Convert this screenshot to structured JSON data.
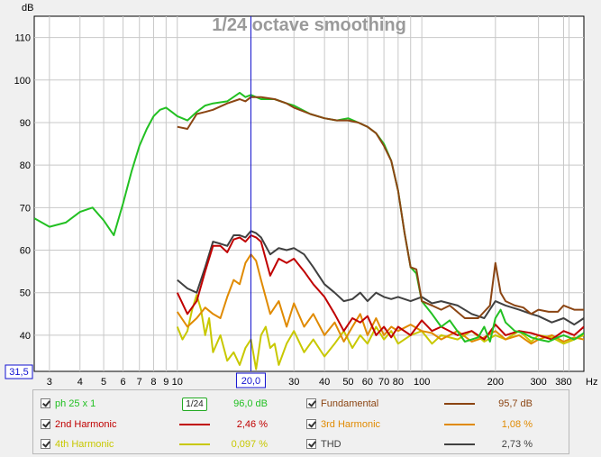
{
  "chart_data": {
    "type": "line",
    "title": "1/24 octave smoothing",
    "ylabel": "dB",
    "xlabel": "Hz",
    "x_scale": "log",
    "xlim": [
      2.6,
      460
    ],
    "ylim": [
      31.5,
      115
    ],
    "y_ticks": [
      40,
      50,
      60,
      70,
      80,
      90,
      100,
      110
    ],
    "x_ticks": [
      3,
      4,
      5,
      6,
      7,
      8,
      9,
      10,
      20,
      30,
      40,
      50,
      60,
      70,
      80,
      100,
      200,
      300,
      380
    ],
    "x_tick_labels": [
      "3",
      "4",
      "5",
      "6",
      "7",
      "8",
      "9",
      "10",
      "20,0",
      "30",
      "40",
      "50",
      "60",
      "70",
      "80",
      "100",
      "200",
      "300",
      "380"
    ],
    "x_minor_grid": [
      90,
      400
    ],
    "y_bottom_label": "31,5",
    "cursor_x": 20,
    "cursor_label": "20,0",
    "grid": true,
    "series": [
      {
        "name": "ph 25 x 1",
        "color": "#22c022",
        "x": [
          2.6,
          3.0,
          3.5,
          4.0,
          4.5,
          5.0,
          5.5,
          6.0,
          6.5,
          7.0,
          7.5,
          8.0,
          8.5,
          9.0,
          9.5,
          10.0,
          11.0,
          12.0,
          13.0,
          14.0,
          16.0,
          18.0,
          19.0,
          20.0,
          22.0,
          25.0,
          28.0,
          30.0,
          35.0,
          40.0,
          45.0,
          50.0,
          55.0,
          60.0,
          65.0,
          70.0,
          75.0,
          80.0,
          85.0,
          90.0,
          95.0,
          100.0,
          110.0,
          120.0,
          130.0,
          150.0,
          170.0,
          180.0,
          190.0,
          200.0,
          210.0,
          220.0,
          240.0,
          260.0,
          280.0,
          300.0,
          330.0,
          360.0,
          380.0,
          420.0,
          460.0
        ],
        "values": [
          67.5,
          65.5,
          66.5,
          69.0,
          70.0,
          67.0,
          63.5,
          71.0,
          78.5,
          84.5,
          88.5,
          91.5,
          93.0,
          93.5,
          92.5,
          91.5,
          90.5,
          92.5,
          94.0,
          94.5,
          95.0,
          97.0,
          96.0,
          96.5,
          95.5,
          95.5,
          94.5,
          94.0,
          92.0,
          91.0,
          90.5,
          91.0,
          90.0,
          89.0,
          87.5,
          85.0,
          81.0,
          74.0,
          64.0,
          56.0,
          54.5,
          48.0,
          45.0,
          42.0,
          43.5,
          38.5,
          39.5,
          42.0,
          38.5,
          44.0,
          46.0,
          43.0,
          41.0,
          40.5,
          39.5,
          39.0,
          38.5,
          39.5,
          40.0,
          39.0,
          40.5
        ]
      },
      {
        "name": "Fundamental",
        "color": "#8b4513",
        "x": [
          10.0,
          11.0,
          12.0,
          13.0,
          14.0,
          16.0,
          18.0,
          19.0,
          20.0,
          22.0,
          25.0,
          28.0,
          30.0,
          35.0,
          40.0,
          45.0,
          50.0,
          55.0,
          60.0,
          65.0,
          70.0,
          75.0,
          80.0,
          85.0,
          90.0,
          95.0,
          100.0,
          110.0,
          120.0,
          130.0,
          150.0,
          170.0,
          190.0,
          200.0,
          210.0,
          220.0,
          240.0,
          260.0,
          280.0,
          300.0,
          330.0,
          360.0,
          380.0,
          420.0,
          460.0
        ],
        "values": [
          89.0,
          88.5,
          92.0,
          92.5,
          93.0,
          94.5,
          95.5,
          95.0,
          96.0,
          96.0,
          95.5,
          94.5,
          93.5,
          92.0,
          91.0,
          90.5,
          90.5,
          90.0,
          89.0,
          87.5,
          84.5,
          81.0,
          74.0,
          64.0,
          56.0,
          55.5,
          48.0,
          47.0,
          46.0,
          47.0,
          44.0,
          44.0,
          47.0,
          57.0,
          50.0,
          48.0,
          47.0,
          46.5,
          45.0,
          46.0,
          45.5,
          45.5,
          47.0,
          46.0,
          46.0
        ]
      },
      {
        "name": "2nd Harmonic",
        "color": "#c00000",
        "x": [
          10.0,
          11.0,
          12.0,
          13.0,
          14.0,
          15.0,
          16.0,
          17.0,
          18.0,
          19.0,
          20.0,
          21.0,
          22.0,
          24.0,
          26.0,
          28.0,
          30.0,
          33.0,
          36.0,
          40.0,
          44.0,
          48.0,
          52.0,
          56.0,
          60.0,
          65.0,
          70.0,
          75.0,
          80.0,
          90.0,
          100.0,
          110.0,
          120.0,
          140.0,
          160.0,
          180.0,
          200.0,
          220.0,
          250.0,
          280.0,
          300.0,
          340.0,
          380.0,
          420.0,
          460.0
        ],
        "values": [
          50.0,
          45.0,
          48.0,
          55.0,
          61.0,
          61.0,
          59.5,
          62.5,
          63.0,
          62.0,
          63.5,
          63.0,
          62.0,
          54.0,
          58.0,
          57.0,
          58.0,
          55.0,
          52.0,
          49.0,
          45.0,
          41.0,
          44.0,
          43.0,
          44.5,
          40.0,
          42.0,
          39.5,
          42.0,
          40.0,
          43.5,
          41.0,
          42.0,
          40.0,
          41.0,
          39.0,
          42.5,
          40.0,
          41.0,
          40.5,
          40.0,
          39.0,
          41.0,
          40.0,
          42.0
        ]
      },
      {
        "name": "3rd Harmonic",
        "color": "#e08a00",
        "x": [
          10.0,
          11.0,
          12.0,
          13.0,
          14.0,
          15.0,
          16.0,
          17.0,
          18.0,
          19.0,
          20.0,
          21.0,
          22.0,
          24.0,
          26.0,
          28.0,
          30.0,
          33.0,
          36.0,
          40.0,
          44.0,
          48.0,
          52.0,
          56.0,
          60.0,
          65.0,
          70.0,
          75.0,
          80.0,
          90.0,
          100.0,
          110.0,
          120.0,
          140.0,
          160.0,
          180.0,
          200.0,
          220.0,
          250.0,
          280.0,
          300.0,
          340.0,
          380.0,
          420.0,
          460.0
        ],
        "values": [
          45.5,
          42.0,
          44.0,
          46.5,
          45.0,
          44.0,
          49.0,
          53.0,
          52.0,
          57.0,
          59.0,
          57.5,
          53.0,
          45.0,
          48.0,
          42.0,
          47.5,
          42.0,
          45.0,
          40.0,
          43.0,
          38.5,
          42.0,
          45.0,
          40.0,
          44.0,
          40.0,
          42.0,
          41.0,
          42.5,
          41.0,
          40.5,
          39.0,
          41.0,
          38.5,
          39.5,
          41.0,
          39.0,
          40.0,
          38.0,
          39.0,
          40.0,
          38.5,
          39.5,
          39.0
        ]
      },
      {
        "name": "4th Harmonic",
        "color": "#c8c800",
        "x": [
          10.0,
          10.5,
          11.0,
          11.5,
          12.0,
          12.5,
          13.0,
          13.5,
          14.0,
          15.0,
          16.0,
          17.0,
          18.0,
          19.0,
          20.0,
          21.0,
          22.0,
          23.0,
          24.0,
          25.0,
          26.0,
          28.0,
          30.0,
          33.0,
          36.0,
          40.0,
          44.0,
          48.0,
          52.0,
          56.0,
          60.0,
          65.0,
          70.0,
          75.0,
          80.0,
          90.0,
          100.0,
          110.0,
          120.0,
          140.0,
          160.0,
          180.0,
          200.0,
          220.0,
          250.0,
          280.0,
          300.0,
          340.0,
          380.0,
          420.0,
          460.0
        ],
        "values": [
          42.0,
          39.0,
          41.0,
          46.0,
          49.5,
          46.0,
          40.0,
          44.0,
          36.0,
          40.0,
          34.0,
          36.0,
          33.0,
          37.0,
          39.0,
          32.0,
          40.0,
          42.0,
          37.0,
          38.0,
          33.0,
          38.0,
          41.0,
          36.0,
          39.0,
          35.0,
          38.0,
          41.0,
          37.0,
          40.0,
          38.0,
          42.0,
          39.0,
          41.0,
          38.0,
          40.0,
          41.0,
          38.0,
          40.0,
          39.0,
          41.0,
          38.5,
          40.0,
          39.0,
          41.0,
          38.5,
          40.0,
          39.5,
          38.0,
          39.0,
          40.0
        ]
      },
      {
        "name": "THD",
        "color": "#404040",
        "x": [
          10.0,
          11.0,
          12.0,
          13.0,
          14.0,
          15.0,
          16.0,
          17.0,
          18.0,
          19.0,
          20.0,
          21.0,
          22.0,
          24.0,
          26.0,
          28.0,
          30.0,
          33.0,
          36.0,
          40.0,
          44.0,
          48.0,
          52.0,
          56.0,
          60.0,
          65.0,
          70.0,
          75.0,
          80.0,
          90.0,
          100.0,
          110.0,
          120.0,
          140.0,
          160.0,
          180.0,
          200.0,
          220.0,
          250.0,
          280.0,
          300.0,
          340.0,
          380.0,
          420.0,
          460.0
        ],
        "values": [
          53.0,
          51.0,
          50.0,
          56.0,
          62.0,
          61.5,
          61.0,
          63.5,
          63.5,
          63.0,
          64.5,
          64.0,
          63.0,
          59.0,
          60.5,
          60.0,
          60.5,
          59.0,
          56.0,
          52.0,
          50.0,
          48.0,
          48.5,
          50.0,
          48.0,
          50.0,
          49.0,
          48.5,
          49.0,
          48.0,
          49.0,
          47.5,
          48.0,
          47.0,
          45.0,
          44.0,
          48.0,
          47.0,
          46.0,
          45.0,
          44.5,
          43.0,
          44.0,
          42.5,
          44.0
        ]
      }
    ]
  },
  "legend": {
    "items": [
      {
        "label": "ph 25 x 1",
        "value": "96,0 dB",
        "color": "#22c022",
        "smoothing": "1/24"
      },
      {
        "label": "Fundamental",
        "value": "95,7 dB",
        "color": "#8b4513"
      },
      {
        "label": "2nd Harmonic",
        "value": "2,46 %",
        "color": "#c00000"
      },
      {
        "label": "3rd Harmonic",
        "value": "1,08 %",
        "color": "#e08a00"
      },
      {
        "label": "4th Harmonic",
        "value": "0,097 %",
        "color": "#c8c800"
      },
      {
        "label": "THD",
        "value": "2,73 %",
        "color": "#404040"
      }
    ]
  }
}
